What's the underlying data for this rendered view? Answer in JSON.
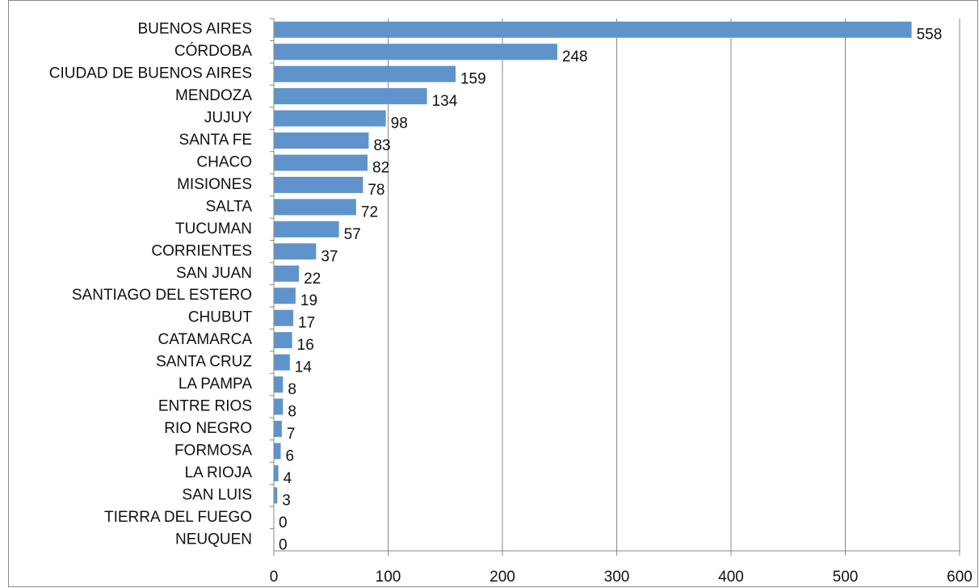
{
  "chart_data": {
    "type": "barh",
    "categories": [
      "BUENOS AIRES",
      "CÓRDOBA",
      "CIUDAD DE BUENOS AIRES",
      "MENDOZA",
      "JUJUY",
      "SANTA FE",
      "CHACO",
      "MISIONES",
      "SALTA",
      "TUCUMAN",
      "CORRIENTES",
      "SAN JUAN",
      "SANTIAGO DEL ESTERO",
      "CHUBUT",
      "CATAMARCA",
      "SANTA CRUZ",
      "LA PAMPA",
      "ENTRE RIOS",
      "RIO NEGRO",
      "FORMOSA",
      "LA RIOJA",
      "SAN LUIS",
      "TIERRA DEL FUEGO",
      "NEUQUEN"
    ],
    "values": [
      558,
      248,
      159,
      134,
      98,
      83,
      82,
      78,
      72,
      57,
      37,
      22,
      19,
      17,
      16,
      14,
      8,
      8,
      7,
      6,
      4,
      3,
      0,
      0
    ],
    "color": "#5f93cc",
    "xlim": [
      0,
      600
    ],
    "xticks": [
      0,
      100,
      200,
      300,
      400,
      500,
      600
    ],
    "grid": true
  }
}
